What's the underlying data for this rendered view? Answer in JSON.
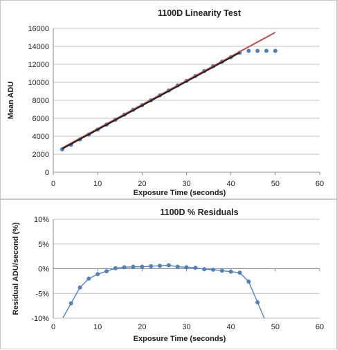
{
  "chart_data": [
    {
      "type": "scatter",
      "title": "1100D Linearity Test",
      "xlabel": "Exposure Time  (seconds)",
      "ylabel": "Mean ADU",
      "xlim": [
        0,
        60
      ],
      "ylim": [
        0,
        16000
      ],
      "xticks": [
        "0",
        "10",
        "20",
        "30",
        "40",
        "50",
        "60"
      ],
      "yticks": [
        "0",
        "2000",
        "4000",
        "6000",
        "8000",
        "10000",
        "12000",
        "14000",
        "16000"
      ],
      "grid": "horizontal",
      "legend": "none",
      "series": [
        {
          "kind": "markers",
          "color": "#4f81bd",
          "x": [
            2,
            4,
            6,
            8,
            10,
            12,
            14,
            16,
            18,
            20,
            22,
            24,
            26,
            28,
            30,
            32,
            34,
            36,
            38,
            40,
            42,
            44,
            46,
            48,
            50
          ],
          "y": [
            2550,
            3050,
            3650,
            4200,
            4750,
            5300,
            5850,
            6400,
            6950,
            7450,
            8000,
            8550,
            9100,
            9650,
            10150,
            10700,
            11250,
            11800,
            12300,
            12800,
            13300,
            13500,
            13500,
            13500,
            13500
          ]
        },
        {
          "kind": "line",
          "color": "#c0504d",
          "x": [
            2,
            50
          ],
          "y": [
            2700,
            15550
          ]
        },
        {
          "kind": "line",
          "color": "#1f1f1f",
          "x": [
            2,
            42
          ],
          "y": [
            2600,
            13300
          ]
        }
      ]
    },
    {
      "type": "line",
      "title": "1100D % Residuals",
      "xlabel": "Exposure Time  (seconds)",
      "ylabel": "Residual ADU/second (%)",
      "xlim": [
        0,
        60
      ],
      "ylim": [
        -10,
        10
      ],
      "xticks": [
        "0",
        "10",
        "20",
        "30",
        "40",
        "50",
        "60"
      ],
      "yticks": [
        "-10%",
        "-5%",
        "0%",
        "5%",
        "10%"
      ],
      "grid": "horizontal",
      "legend": "none",
      "series": [
        {
          "kind": "line-markers",
          "color": "#4f81bd",
          "x": [
            4,
            6,
            8,
            10,
            12,
            14,
            16,
            18,
            20,
            22,
            24,
            26,
            28,
            30,
            32,
            34,
            36,
            38,
            40,
            42,
            44,
            46
          ],
          "y": [
            -7.0,
            -3.8,
            -2.0,
            -1.1,
            -0.5,
            0.1,
            0.3,
            0.4,
            0.4,
            0.5,
            0.6,
            0.7,
            0.4,
            0.3,
            0.2,
            -0.1,
            -0.2,
            -0.4,
            -0.6,
            -0.8,
            -2.6,
            -6.8
          ]
        }
      ]
    }
  ]
}
